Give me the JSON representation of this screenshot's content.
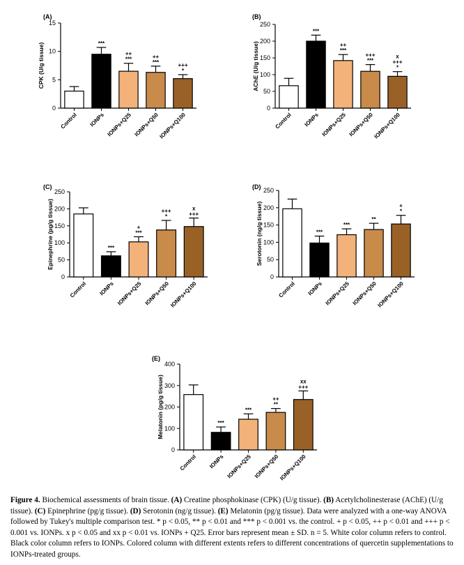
{
  "chart_data": [
    {
      "panel": "(A)",
      "type": "bar",
      "ylabel": "CPK (U/g tissue)",
      "categories": [
        "Control",
        "IONPs",
        "IONPs+Q25",
        "IONPs+Q50",
        "IONPs+Q100"
      ],
      "values": [
        3.0,
        9.5,
        6.5,
        6.3,
        5.2
      ],
      "errors": [
        0.8,
        1.2,
        1.4,
        1.1,
        0.7
      ],
      "ylim": [
        0,
        15
      ],
      "yticks": [
        0,
        5,
        10,
        15
      ],
      "sig": [
        [],
        [
          "***"
        ],
        [
          "++",
          "***"
        ],
        [
          "++",
          "***"
        ],
        [
          "+++",
          "*"
        ]
      ],
      "colors": [
        "#ffffff",
        "#000000",
        "#f2b27a",
        "#c88b4a",
        "#9a6126"
      ]
    },
    {
      "panel": "(B)",
      "type": "bar",
      "ylabel": "AChE (U/g tissue)",
      "categories": [
        "Control",
        "IONPs",
        "IONPs+Q25",
        "IONPs+Q50",
        "IONPs+Q100"
      ],
      "values": [
        67,
        200,
        142,
        110,
        95
      ],
      "errors": [
        22,
        18,
        18,
        20,
        14
      ],
      "ylim": [
        0,
        250
      ],
      "yticks": [
        0,
        50,
        100,
        150,
        200,
        250
      ],
      "sig": [
        [],
        [
          "***"
        ],
        [
          "++",
          "***"
        ],
        [
          "+++",
          "***"
        ],
        [
          "x",
          "+++",
          "*"
        ]
      ],
      "colors": [
        "#ffffff",
        "#000000",
        "#f2b27a",
        "#c88b4a",
        "#9a6126"
      ]
    },
    {
      "panel": "(C)",
      "type": "bar",
      "ylabel": "Epinephrine (pg/g tissue)",
      "categories": [
        "Control",
        "IONPs",
        "IONPs+Q25",
        "IONPs+Q50",
        "IONPs+Q100"
      ],
      "values": [
        185,
        62,
        103,
        138,
        148
      ],
      "errors": [
        18,
        12,
        15,
        28,
        25
      ],
      "ylim": [
        0,
        250
      ],
      "yticks": [
        0,
        50,
        100,
        150,
        200,
        250
      ],
      "sig": [
        [],
        [
          "***"
        ],
        [
          "+",
          "***"
        ],
        [
          "+++",
          "*"
        ],
        [
          "x",
          "+++"
        ]
      ],
      "colors": [
        "#ffffff",
        "#000000",
        "#f2b27a",
        "#c88b4a",
        "#9a6126"
      ]
    },
    {
      "panel": "(D)",
      "type": "bar",
      "ylabel": "Serotonin (ng/g tissue)",
      "categories": [
        "Control",
        "IONPs",
        "IONPs+Q25",
        "IONPs+Q50",
        "IONPs+Q100"
      ],
      "values": [
        197,
        98,
        122,
        137,
        153
      ],
      "errors": [
        28,
        20,
        17,
        18,
        25
      ],
      "ylim": [
        0,
        250
      ],
      "yticks": [
        0,
        50,
        100,
        150,
        200,
        250
      ],
      "sig": [
        [],
        [
          "***"
        ],
        [
          "***"
        ],
        [
          "**"
        ],
        [
          "+",
          "*"
        ]
      ],
      "colors": [
        "#ffffff",
        "#000000",
        "#f2b27a",
        "#c88b4a",
        "#9a6126"
      ]
    },
    {
      "panel": "(E)",
      "type": "bar",
      "ylabel": "Melatonin (pg/g tissue)",
      "categories": [
        "Control",
        "IONPs",
        "IONPs+Q25",
        "IONPs+Q50",
        "IONPs+Q100"
      ],
      "values": [
        258,
        82,
        143,
        175,
        235
      ],
      "errors": [
        45,
        25,
        25,
        18,
        40
      ],
      "ylim": [
        0,
        400
      ],
      "yticks": [
        0,
        100,
        200,
        300,
        400
      ],
      "sig": [
        [],
        [
          "***"
        ],
        [
          "***"
        ],
        [
          "++",
          "**"
        ],
        [
          "xx",
          "+++"
        ]
      ],
      "colors": [
        "#ffffff",
        "#000000",
        "#f2b27a",
        "#c88b4a",
        "#9a6126"
      ]
    }
  ],
  "caption": {
    "label": "Figure 4.",
    "title": "Biochemical assessments of brain tissue.",
    "parts": [
      {
        "id": "(A)",
        "text": "Creatine phosphokinase (CPK) (U/g tissue)."
      },
      {
        "id": "(B)",
        "text": "Acetylcholinesterase (AChE) (U/g tissue)."
      },
      {
        "id": "(C)",
        "text": "Epinephrine (pg/g tissue)."
      },
      {
        "id": "(D)",
        "text": "Serotonin (ng/g tissue)."
      },
      {
        "id": "(E)",
        "text": "Melatonin (pg/g tissue)."
      }
    ],
    "rest": "Data were analyzed with a one-way ANOVA followed by Tukey's multiple comparison test. * p < 0.05, ** p < 0.01 and *** p < 0.001 vs. the control. + p < 0.05, ++ p < 0.01 and +++ p < 0.001 vs. IONPs. x p < 0.05 and xx p < 0.01 vs. IONPs + Q25. Error bars represent mean ± SD. n = 5. White color column refers to control. Black color column refers to IONPs. Colored column with different extents refers to different concentrations of quercetin supplementations to IONPs-treated groups."
  }
}
